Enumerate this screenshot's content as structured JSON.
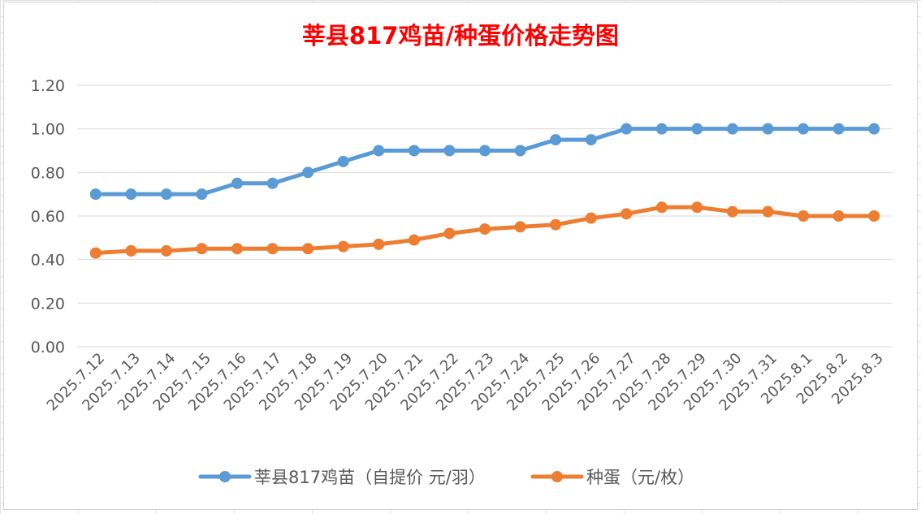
{
  "chart_data": {
    "type": "line",
    "title": "莘县817鸡苗/种蛋价格走势图",
    "categories": [
      "2025.7.12",
      "2025.7.13",
      "2025.7.14",
      "2025.7.15",
      "2025.7.16",
      "2025.7.17",
      "2025.7.18",
      "2025.7.19",
      "2025.7.20",
      "2025.7.21",
      "2025.7.22",
      "2025.7.23",
      "2025.7.24",
      "2025.7.25",
      "2025.7.26",
      "2025.7.27",
      "2025.7.28",
      "2025.7.29",
      "2025.7.30",
      "2025.7.31",
      "2025.8.1",
      "2025.8.2",
      "2025.8.3"
    ],
    "series": [
      {
        "name": "莘县817鸡苗（自提价 元/羽）",
        "color": "#5b9bd5",
        "values": [
          0.7,
          0.7,
          0.7,
          0.7,
          0.75,
          0.75,
          0.8,
          0.85,
          0.9,
          0.9,
          0.9,
          0.9,
          0.9,
          0.95,
          0.95,
          1.0,
          1.0,
          1.0,
          1.0,
          1.0,
          1.0,
          1.0,
          1.0
        ]
      },
      {
        "name": "种蛋（元/枚）",
        "color": "#ed7d31",
        "values": [
          0.43,
          0.44,
          0.44,
          0.45,
          0.45,
          0.45,
          0.45,
          0.46,
          0.47,
          0.49,
          0.52,
          0.54,
          0.55,
          0.56,
          0.59,
          0.61,
          0.64,
          0.64,
          0.62,
          0.62,
          0.6,
          0.6,
          0.6
        ]
      }
    ],
    "yticks": [
      "0.00",
      "0.20",
      "0.40",
      "0.60",
      "0.80",
      "1.00",
      "1.20"
    ],
    "ylim": [
      0,
      1.2
    ],
    "grid": true,
    "legend_position": "bottom",
    "title_color": "#ff0000",
    "xlabel": "",
    "ylabel": ""
  }
}
